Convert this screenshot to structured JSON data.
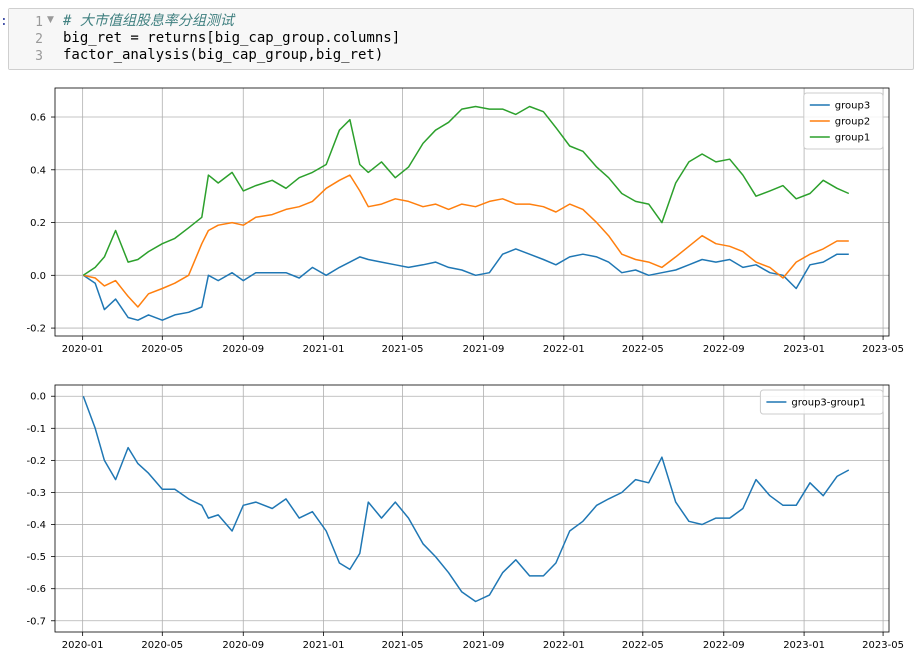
{
  "cell": {
    "line_numbers": [
      "1",
      "2",
      "3"
    ],
    "code_lines": [
      "# 大市值组股息率分组测试",
      "big_ret = returns[big_cap_group.columns]",
      "factor_analysis(big_cap_group,big_ret)"
    ]
  },
  "chart_data": [
    {
      "type": "line",
      "title": "",
      "xlabel": "",
      "ylabel": "",
      "x_ticks": [
        "2020-01",
        "2020-05",
        "2020-09",
        "2021-01",
        "2021-05",
        "2021-09",
        "2022-01",
        "2022-05",
        "2022-09",
        "2023-01",
        "2023-05"
      ],
      "y_ticks": [
        "-0.2",
        "0.0",
        "0.2",
        "0.4",
        "0.6"
      ],
      "ylim": [
        -0.23,
        0.71
      ],
      "xlim": [
        "2019-11-20",
        "2023-05-10"
      ],
      "grid": true,
      "legend": "top-right",
      "x": [
        "2020-01-02",
        "2020-01-20",
        "2020-02-03",
        "2020-02-20",
        "2020-03-10",
        "2020-03-25",
        "2020-04-10",
        "2020-05-01",
        "2020-05-20",
        "2020-06-10",
        "2020-06-30",
        "2020-07-10",
        "2020-07-25",
        "2020-08-15",
        "2020-09-01",
        "2020-09-20",
        "2020-10-15",
        "2020-11-05",
        "2020-11-25",
        "2020-12-15",
        "2021-01-05",
        "2021-01-25",
        "2021-02-10",
        "2021-02-25",
        "2021-03-10",
        "2021-03-30",
        "2021-04-20",
        "2021-05-10",
        "2021-06-01",
        "2021-06-20",
        "2021-07-10",
        "2021-07-30",
        "2021-08-20",
        "2021-09-10",
        "2021-09-30",
        "2021-10-20",
        "2021-11-10",
        "2021-12-01",
        "2021-12-20",
        "2022-01-10",
        "2022-01-30",
        "2022-02-20",
        "2022-03-10",
        "2022-03-30",
        "2022-04-20",
        "2022-05-10",
        "2022-05-30",
        "2022-06-20",
        "2022-07-10",
        "2022-07-30",
        "2022-08-20",
        "2022-09-10",
        "2022-09-30",
        "2022-10-20",
        "2022-11-10",
        "2022-11-30",
        "2022-12-20",
        "2023-01-10",
        "2023-01-30",
        "2023-02-20",
        "2023-03-10"
      ],
      "series": [
        {
          "name": "group3",
          "color": "#1f77b4",
          "values": [
            0,
            -0.03,
            -0.13,
            -0.09,
            -0.16,
            -0.17,
            -0.15,
            -0.17,
            -0.15,
            -0.14,
            -0.12,
            0.0,
            -0.02,
            0.01,
            -0.02,
            0.01,
            0.01,
            0.01,
            -0.01,
            0.03,
            0.0,
            0.03,
            0.05,
            0.07,
            0.06,
            0.05,
            0.04,
            0.03,
            0.04,
            0.05,
            0.03,
            0.02,
            0.0,
            0.01,
            0.08,
            0.1,
            0.08,
            0.06,
            0.04,
            0.07,
            0.08,
            0.07,
            0.05,
            0.01,
            0.02,
            0.0,
            0.01,
            0.02,
            0.04,
            0.06,
            0.05,
            0.06,
            0.03,
            0.04,
            0.01,
            0.0,
            -0.05,
            0.04,
            0.05,
            0.08,
            0.08
          ]
        },
        {
          "name": "group2",
          "color": "#ff7f0e",
          "values": [
            0,
            -0.01,
            -0.04,
            -0.02,
            -0.08,
            -0.12,
            -0.07,
            -0.05,
            -0.03,
            0.0,
            0.12,
            0.17,
            0.19,
            0.2,
            0.19,
            0.22,
            0.23,
            0.25,
            0.26,
            0.28,
            0.33,
            0.36,
            0.38,
            0.32,
            0.26,
            0.27,
            0.29,
            0.28,
            0.26,
            0.27,
            0.25,
            0.27,
            0.26,
            0.28,
            0.29,
            0.27,
            0.27,
            0.26,
            0.24,
            0.27,
            0.25,
            0.2,
            0.15,
            0.08,
            0.06,
            0.05,
            0.03,
            0.07,
            0.11,
            0.15,
            0.12,
            0.11,
            0.09,
            0.05,
            0.03,
            -0.01,
            0.05,
            0.08,
            0.1,
            0.13,
            0.13
          ]
        },
        {
          "name": "group1",
          "color": "#2ca02c",
          "values": [
            0,
            0.03,
            0.07,
            0.17,
            0.05,
            0.06,
            0.09,
            0.12,
            0.14,
            0.18,
            0.22,
            0.38,
            0.35,
            0.39,
            0.32,
            0.34,
            0.36,
            0.33,
            0.37,
            0.39,
            0.42,
            0.55,
            0.59,
            0.42,
            0.39,
            0.43,
            0.37,
            0.41,
            0.5,
            0.55,
            0.58,
            0.63,
            0.64,
            0.63,
            0.63,
            0.61,
            0.64,
            0.62,
            0.56,
            0.49,
            0.47,
            0.41,
            0.37,
            0.31,
            0.28,
            0.27,
            0.2,
            0.35,
            0.43,
            0.46,
            0.43,
            0.44,
            0.38,
            0.3,
            0.32,
            0.34,
            0.29,
            0.31,
            0.36,
            0.33,
            0.31
          ]
        }
      ]
    },
    {
      "type": "line",
      "title": "",
      "xlabel": "",
      "ylabel": "",
      "x_ticks": [
        "2020-01",
        "2020-05",
        "2020-09",
        "2021-01",
        "2021-05",
        "2021-09",
        "2022-01",
        "2022-05",
        "2022-09",
        "2023-01",
        "2023-05"
      ],
      "y_ticks": [
        "0.0",
        "-0.1",
        "-0.2",
        "-0.3",
        "-0.4",
        "-0.5",
        "-0.6",
        "-0.7"
      ],
      "ylim": [
        -0.735,
        0.035
      ],
      "xlim": [
        "2019-11-20",
        "2023-05-10"
      ],
      "grid": true,
      "legend": "top-right",
      "x": [
        "2020-01-02",
        "2020-01-20",
        "2020-02-03",
        "2020-02-20",
        "2020-03-10",
        "2020-03-25",
        "2020-04-10",
        "2020-05-01",
        "2020-05-20",
        "2020-06-10",
        "2020-06-30",
        "2020-07-10",
        "2020-07-25",
        "2020-08-15",
        "2020-09-01",
        "2020-09-20",
        "2020-10-15",
        "2020-11-05",
        "2020-11-25",
        "2020-12-15",
        "2021-01-05",
        "2021-01-25",
        "2021-02-10",
        "2021-02-25",
        "2021-03-10",
        "2021-03-30",
        "2021-04-20",
        "2021-05-10",
        "2021-06-01",
        "2021-06-20",
        "2021-07-10",
        "2021-07-30",
        "2021-08-20",
        "2021-09-10",
        "2021-09-30",
        "2021-10-20",
        "2021-11-10",
        "2021-12-01",
        "2021-12-20",
        "2022-01-10",
        "2022-01-30",
        "2022-02-20",
        "2022-03-10",
        "2022-03-30",
        "2022-04-20",
        "2022-05-10",
        "2022-05-30",
        "2022-06-20",
        "2022-07-10",
        "2022-07-30",
        "2022-08-20",
        "2022-09-10",
        "2022-09-30",
        "2022-10-20",
        "2022-11-10",
        "2022-11-30",
        "2022-12-20",
        "2023-01-10",
        "2023-01-30",
        "2023-02-20",
        "2023-03-10"
      ],
      "series": [
        {
          "name": "group3-group1",
          "color": "#1f77b4",
          "values": [
            0,
            -0.1,
            -0.2,
            -0.26,
            -0.16,
            -0.21,
            -0.24,
            -0.29,
            -0.29,
            -0.32,
            -0.34,
            -0.38,
            -0.37,
            -0.42,
            -0.34,
            -0.33,
            -0.35,
            -0.32,
            -0.38,
            -0.36,
            -0.42,
            -0.52,
            -0.54,
            -0.49,
            -0.33,
            -0.38,
            -0.33,
            -0.38,
            -0.46,
            -0.5,
            -0.55,
            -0.61,
            -0.64,
            -0.62,
            -0.55,
            -0.51,
            -0.56,
            -0.56,
            -0.52,
            -0.42,
            -0.39,
            -0.34,
            -0.32,
            -0.3,
            -0.26,
            -0.27,
            -0.19,
            -0.33,
            -0.39,
            -0.4,
            -0.38,
            -0.38,
            -0.35,
            -0.26,
            -0.31,
            -0.34,
            -0.34,
            -0.27,
            -0.31,
            -0.25,
            -0.23
          ]
        }
      ]
    }
  ]
}
